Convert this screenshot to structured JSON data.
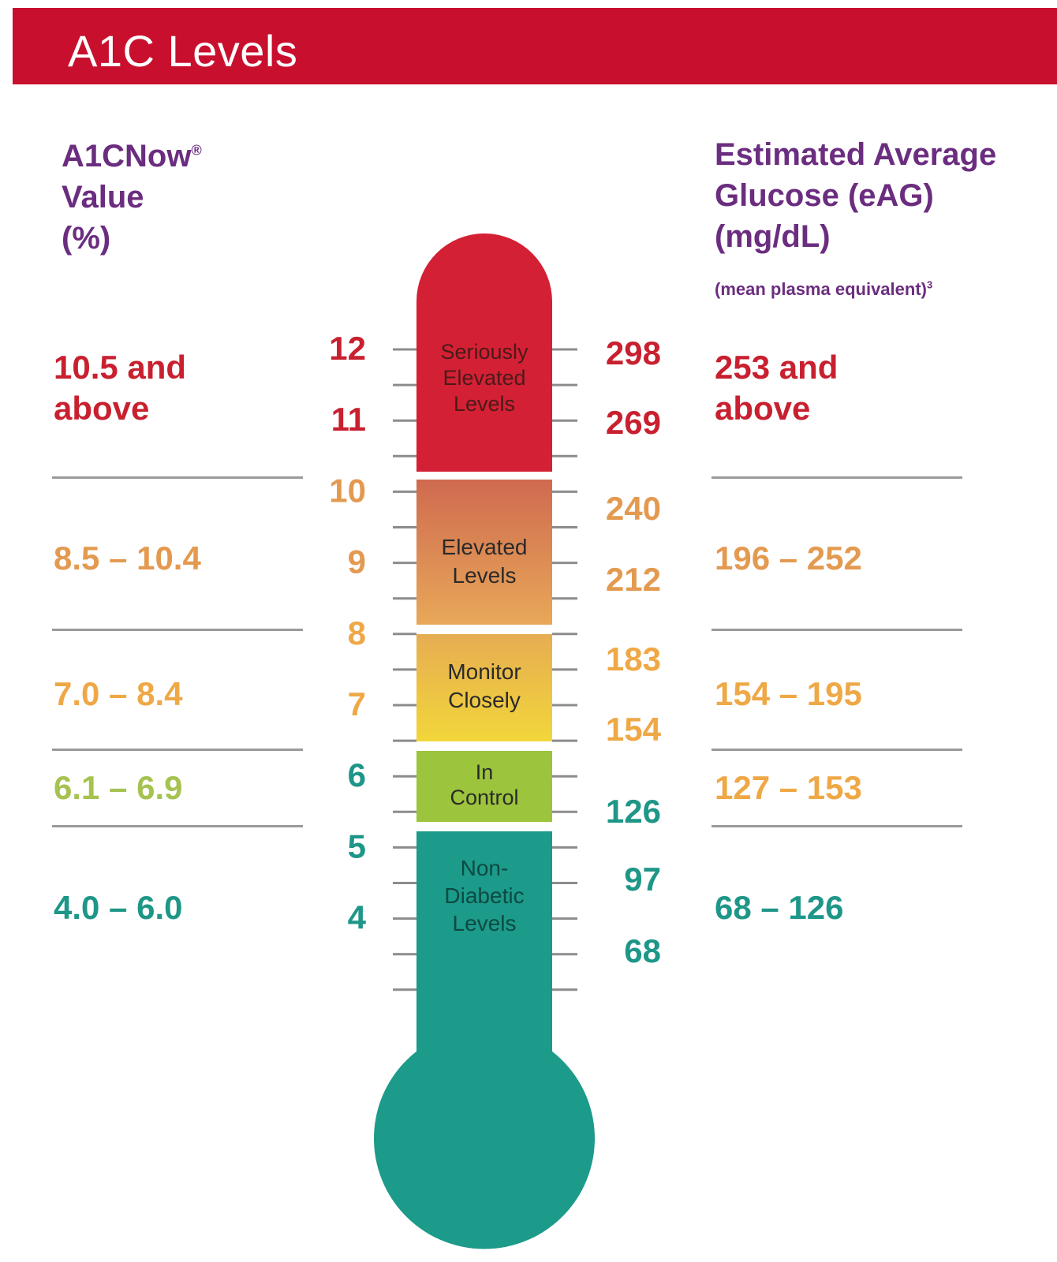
{
  "title": "A1C Levels",
  "left_header": {
    "line1": "A1CNow",
    "reg": "®",
    "line2": "Value",
    "line3": "(%)"
  },
  "right_header": {
    "line1": "Estimated Average",
    "line2": "Glucose (eAG)",
    "line3": "(mg/dL)",
    "note": "(mean plasma equivalent)",
    "note_sup": "3"
  },
  "colors": {
    "banner": "#c8102e",
    "header": "#6b2d7f",
    "red": "#c8202f",
    "orange": "#e1924a",
    "yellow": "#efb03c",
    "green": "#9fbe3a",
    "teal": "#1e9688"
  },
  "zones": [
    {
      "label_lines": [
        "Seriously",
        "Elevated",
        "Levels"
      ],
      "a1c": "10.5 and above",
      "a1c_lines": [
        "10.5 and",
        "above"
      ],
      "eag_lines": [
        "253 and",
        "above"
      ],
      "color": "#d42034",
      "color2": "#d42034",
      "text_color": "#c8202f"
    },
    {
      "label_lines": [
        "Elevated",
        "Levels"
      ],
      "a1c_lines": [
        "8.5 – 10.4"
      ],
      "eag_lines": [
        "196 – 252"
      ],
      "color": "#cf6a50",
      "color2": "#e8a058",
      "text_color": "#e39a50"
    },
    {
      "label_lines": [
        "Monitor",
        "Closely"
      ],
      "a1c_lines": [
        "7.0 – 8.4"
      ],
      "eag_lines": [
        "154 – 195"
      ],
      "color": "#e7b050",
      "color2": "#f2d23c",
      "text_color": "#efa846"
    },
    {
      "label_lines": [
        "In",
        "Control"
      ],
      "a1c_lines": [
        "6.1 – 6.9"
      ],
      "eag_lines": [
        "127 – 153"
      ],
      "color": "#9cc43c",
      "color2": "#9cc43c",
      "text_color_a1c": "#a6c250",
      "text_color": "#efa846"
    },
    {
      "label_lines": [
        "Non-",
        "Diabetic",
        "Levels"
      ],
      "a1c_lines": [
        "4.0 – 6.0"
      ],
      "eag_lines": [
        "68 – 126"
      ],
      "color": "#1c9a8a",
      "color2": "#1c9a8a",
      "text_color": "#1e9688"
    }
  ],
  "a1c_ticks": [
    {
      "value": "12",
      "color": "#c8202f"
    },
    {
      "value": "11",
      "color": "#c8202f"
    },
    {
      "value": "10",
      "color": "#e39a50"
    },
    {
      "value": "9",
      "color": "#e39a50"
    },
    {
      "value": "8",
      "color": "#efa846"
    },
    {
      "value": "7",
      "color": "#efa846"
    },
    {
      "value": "6",
      "color": "#1e9688"
    },
    {
      "value": "5",
      "color": "#1e9688"
    },
    {
      "value": "4",
      "color": "#1e9688"
    }
  ],
  "eag_ticks": [
    {
      "value": "298",
      "color": "#c8202f"
    },
    {
      "value": "269",
      "color": "#c8202f"
    },
    {
      "value": "240",
      "color": "#e39a50"
    },
    {
      "value": "212",
      "color": "#e39a50"
    },
    {
      "value": "183",
      "color": "#efa846"
    },
    {
      "value": "154",
      "color": "#efa846"
    },
    {
      "value": "126",
      "color": "#1e9688"
    },
    {
      "value": "97",
      "color": "#1e9688"
    },
    {
      "value": "68",
      "color": "#1e9688"
    }
  ]
}
